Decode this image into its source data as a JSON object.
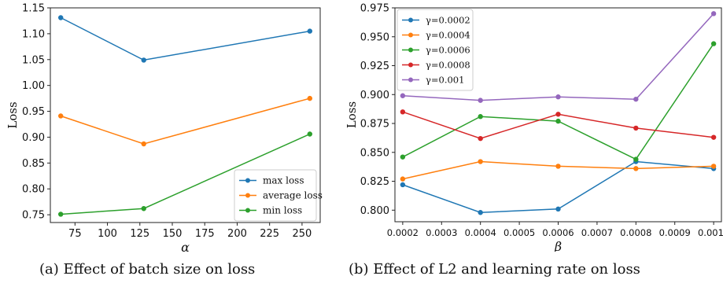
{
  "captions": {
    "a": "(a) Effect of batch size on loss",
    "b": "(b) Effect of L2 and learning rate on loss"
  },
  "chart_data": [
    {
      "type": "line",
      "xlabel": "α",
      "ylabel": "Loss",
      "xlim": [
        56,
        264
      ],
      "ylim": [
        0.735,
        1.15
      ],
      "xticks": [
        "75",
        "100",
        "125",
        "150",
        "175",
        "200",
        "225",
        "250"
      ],
      "yticks": [
        "0.75",
        "0.80",
        "0.85",
        "0.90",
        "0.95",
        "1.00",
        "1.05",
        "1.10",
        "1.15"
      ],
      "x": [
        64,
        128,
        256
      ],
      "legend_position": "lower-right",
      "grid": false,
      "series": [
        {
          "name": "max loss",
          "color": "#1f77b4",
          "values": [
            1.131,
            1.049,
            1.105
          ]
        },
        {
          "name": "average loss",
          "color": "#ff7f0e",
          "values": [
            0.941,
            0.887,
            0.975
          ]
        },
        {
          "name": "min loss",
          "color": "#2ca02c",
          "values": [
            0.751,
            0.762,
            0.906
          ]
        }
      ]
    },
    {
      "type": "line",
      "xlabel": "β",
      "ylabel": "Loss",
      "xlim": [
        0.00018,
        0.00102
      ],
      "ylim": [
        0.79,
        0.975
      ],
      "xticks": [
        "0.0002",
        "0.0003",
        "0.0004",
        "0.0005",
        "0.0006",
        "0.0007",
        "0.0008",
        "0.0009",
        "0.0010"
      ],
      "yticks": [
        "0.800",
        "0.825",
        "0.850",
        "0.875",
        "0.900",
        "0.925",
        "0.950",
        "0.975"
      ],
      "x": [
        0.0002,
        0.0004,
        0.0006,
        0.0008,
        0.001
      ],
      "legend_position": "top-left",
      "grid": false,
      "series": [
        {
          "name": "γ=0.0002",
          "color": "#1f77b4",
          "values": [
            0.822,
            0.798,
            0.801,
            0.842,
            0.836
          ]
        },
        {
          "name": "γ=0.0004",
          "color": "#ff7f0e",
          "values": [
            0.827,
            0.842,
            0.838,
            0.836,
            0.838
          ]
        },
        {
          "name": "γ=0.0006",
          "color": "#2ca02c",
          "values": [
            0.846,
            0.881,
            0.877,
            0.844,
            0.944
          ]
        },
        {
          "name": "γ=0.0008",
          "color": "#d62728",
          "values": [
            0.885,
            0.862,
            0.883,
            0.871,
            0.863
          ]
        },
        {
          "name": "γ=0.001",
          "color": "#9467bd",
          "values": [
            0.899,
            0.895,
            0.898,
            0.896,
            0.97
          ]
        }
      ]
    }
  ]
}
